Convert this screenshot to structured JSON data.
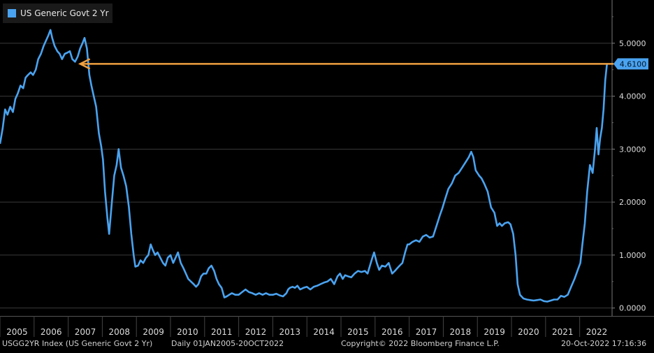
{
  "chart_data": {
    "type": "line",
    "title": "",
    "xlabel": "",
    "ylabel": "",
    "series": [
      {
        "name": "US Generic Govt 2 Yr",
        "color": "#4aa3f0",
        "points": [
          [
            2005.0,
            3.1
          ],
          [
            2005.08,
            3.4
          ],
          [
            2005.15,
            3.75
          ],
          [
            2005.22,
            3.65
          ],
          [
            2005.3,
            3.8
          ],
          [
            2005.38,
            3.7
          ],
          [
            2005.45,
            3.95
          ],
          [
            2005.52,
            4.05
          ],
          [
            2005.6,
            4.2
          ],
          [
            2005.68,
            4.15
          ],
          [
            2005.75,
            4.35
          ],
          [
            2005.82,
            4.4
          ],
          [
            2005.9,
            4.45
          ],
          [
            2005.97,
            4.4
          ],
          [
            2006.05,
            4.5
          ],
          [
            2006.12,
            4.7
          ],
          [
            2006.2,
            4.8
          ],
          [
            2006.28,
            4.95
          ],
          [
            2006.35,
            5.05
          ],
          [
            2006.42,
            5.15
          ],
          [
            2006.48,
            5.25
          ],
          [
            2006.53,
            5.1
          ],
          [
            2006.6,
            4.95
          ],
          [
            2006.68,
            4.85
          ],
          [
            2006.75,
            4.8
          ],
          [
            2006.82,
            4.7
          ],
          [
            2006.9,
            4.8
          ],
          [
            2006.97,
            4.82
          ],
          [
            2007.05,
            4.85
          ],
          [
            2007.12,
            4.7
          ],
          [
            2007.2,
            4.65
          ],
          [
            2007.28,
            4.75
          ],
          [
            2007.35,
            4.9
          ],
          [
            2007.42,
            5.0
          ],
          [
            2007.48,
            5.1
          ],
          [
            2007.55,
            4.9
          ],
          [
            2007.62,
            4.4
          ],
          [
            2007.68,
            4.2
          ],
          [
            2007.75,
            4.0
          ],
          [
            2007.82,
            3.8
          ],
          [
            2007.9,
            3.3
          ],
          [
            2007.97,
            3.05
          ],
          [
            2008.02,
            2.8
          ],
          [
            2008.08,
            2.2
          ],
          [
            2008.15,
            1.7
          ],
          [
            2008.2,
            1.4
          ],
          [
            2008.28,
            2.0
          ],
          [
            2008.35,
            2.5
          ],
          [
            2008.42,
            2.7
          ],
          [
            2008.48,
            3.0
          ],
          [
            2008.55,
            2.65
          ],
          [
            2008.62,
            2.5
          ],
          [
            2008.7,
            2.3
          ],
          [
            2008.78,
            1.9
          ],
          [
            2008.85,
            1.4
          ],
          [
            2008.92,
            1.0
          ],
          [
            2008.97,
            0.78
          ],
          [
            2009.05,
            0.8
          ],
          [
            2009.12,
            0.9
          ],
          [
            2009.2,
            0.85
          ],
          [
            2009.28,
            0.95
          ],
          [
            2009.35,
            1.0
          ],
          [
            2009.42,
            1.2
          ],
          [
            2009.48,
            1.1
          ],
          [
            2009.55,
            1.0
          ],
          [
            2009.62,
            1.05
          ],
          [
            2009.7,
            0.95
          ],
          [
            2009.78,
            0.85
          ],
          [
            2009.85,
            0.8
          ],
          [
            2009.92,
            0.95
          ],
          [
            2010.0,
            1.0
          ],
          [
            2010.08,
            0.85
          ],
          [
            2010.15,
            0.95
          ],
          [
            2010.22,
            1.05
          ],
          [
            2010.3,
            0.85
          ],
          [
            2010.38,
            0.75
          ],
          [
            2010.45,
            0.65
          ],
          [
            2010.52,
            0.55
          ],
          [
            2010.6,
            0.5
          ],
          [
            2010.68,
            0.45
          ],
          [
            2010.75,
            0.4
          ],
          [
            2010.82,
            0.45
          ],
          [
            2010.9,
            0.6
          ],
          [
            2010.97,
            0.65
          ],
          [
            2011.05,
            0.65
          ],
          [
            2011.12,
            0.75
          ],
          [
            2011.2,
            0.8
          ],
          [
            2011.28,
            0.7
          ],
          [
            2011.35,
            0.55
          ],
          [
            2011.42,
            0.45
          ],
          [
            2011.5,
            0.38
          ],
          [
            2011.58,
            0.2
          ],
          [
            2011.65,
            0.22
          ],
          [
            2011.72,
            0.25
          ],
          [
            2011.8,
            0.28
          ],
          [
            2011.9,
            0.25
          ],
          [
            2012.0,
            0.25
          ],
          [
            2012.1,
            0.3
          ],
          [
            2012.2,
            0.35
          ],
          [
            2012.3,
            0.3
          ],
          [
            2012.4,
            0.28
          ],
          [
            2012.5,
            0.25
          ],
          [
            2012.6,
            0.28
          ],
          [
            2012.7,
            0.25
          ],
          [
            2012.8,
            0.28
          ],
          [
            2012.9,
            0.25
          ],
          [
            2013.0,
            0.25
          ],
          [
            2013.1,
            0.27
          ],
          [
            2013.2,
            0.24
          ],
          [
            2013.3,
            0.22
          ],
          [
            2013.4,
            0.28
          ],
          [
            2013.45,
            0.35
          ],
          [
            2013.5,
            0.38
          ],
          [
            2013.58,
            0.4
          ],
          [
            2013.65,
            0.38
          ],
          [
            2013.72,
            0.42
          ],
          [
            2013.8,
            0.35
          ],
          [
            2013.9,
            0.38
          ],
          [
            2014.0,
            0.4
          ],
          [
            2014.1,
            0.35
          ],
          [
            2014.2,
            0.4
          ],
          [
            2014.3,
            0.42
          ],
          [
            2014.4,
            0.45
          ],
          [
            2014.5,
            0.48
          ],
          [
            2014.6,
            0.5
          ],
          [
            2014.7,
            0.55
          ],
          [
            2014.8,
            0.45
          ],
          [
            2014.9,
            0.6
          ],
          [
            2014.97,
            0.65
          ],
          [
            2015.05,
            0.55
          ],
          [
            2015.12,
            0.62
          ],
          [
            2015.2,
            0.6
          ],
          [
            2015.3,
            0.58
          ],
          [
            2015.4,
            0.65
          ],
          [
            2015.5,
            0.7
          ],
          [
            2015.6,
            0.68
          ],
          [
            2015.7,
            0.7
          ],
          [
            2015.78,
            0.65
          ],
          [
            2015.85,
            0.8
          ],
          [
            2015.92,
            0.95
          ],
          [
            2015.97,
            1.05
          ],
          [
            2016.05,
            0.85
          ],
          [
            2016.12,
            0.72
          ],
          [
            2016.2,
            0.8
          ],
          [
            2016.3,
            0.78
          ],
          [
            2016.4,
            0.85
          ],
          [
            2016.5,
            0.65
          ],
          [
            2016.58,
            0.7
          ],
          [
            2016.65,
            0.75
          ],
          [
            2016.72,
            0.8
          ],
          [
            2016.8,
            0.85
          ],
          [
            2016.88,
            1.05
          ],
          [
            2016.95,
            1.2
          ],
          [
            2017.0,
            1.2
          ],
          [
            2017.1,
            1.25
          ],
          [
            2017.2,
            1.28
          ],
          [
            2017.3,
            1.25
          ],
          [
            2017.4,
            1.35
          ],
          [
            2017.5,
            1.38
          ],
          [
            2017.6,
            1.33
          ],
          [
            2017.7,
            1.35
          ],
          [
            2017.8,
            1.55
          ],
          [
            2017.9,
            1.75
          ],
          [
            2017.97,
            1.88
          ],
          [
            2018.05,
            2.05
          ],
          [
            2018.15,
            2.25
          ],
          [
            2018.25,
            2.35
          ],
          [
            2018.35,
            2.5
          ],
          [
            2018.45,
            2.55
          ],
          [
            2018.55,
            2.65
          ],
          [
            2018.65,
            2.75
          ],
          [
            2018.75,
            2.85
          ],
          [
            2018.82,
            2.95
          ],
          [
            2018.88,
            2.85
          ],
          [
            2018.95,
            2.6
          ],
          [
            2019.05,
            2.5
          ],
          [
            2019.12,
            2.45
          ],
          [
            2019.2,
            2.35
          ],
          [
            2019.3,
            2.2
          ],
          [
            2019.4,
            1.9
          ],
          [
            2019.5,
            1.8
          ],
          [
            2019.58,
            1.55
          ],
          [
            2019.65,
            1.6
          ],
          [
            2019.72,
            1.55
          ],
          [
            2019.8,
            1.6
          ],
          [
            2019.9,
            1.62
          ],
          [
            2019.97,
            1.58
          ],
          [
            2020.05,
            1.4
          ],
          [
            2020.12,
            1.0
          ],
          [
            2020.18,
            0.45
          ],
          [
            2020.25,
            0.25
          ],
          [
            2020.35,
            0.18
          ],
          [
            2020.45,
            0.16
          ],
          [
            2020.55,
            0.15
          ],
          [
            2020.65,
            0.14
          ],
          [
            2020.75,
            0.15
          ],
          [
            2020.85,
            0.16
          ],
          [
            2020.95,
            0.13
          ],
          [
            2021.05,
            0.12
          ],
          [
            2021.15,
            0.14
          ],
          [
            2021.25,
            0.16
          ],
          [
            2021.35,
            0.16
          ],
          [
            2021.45,
            0.23
          ],
          [
            2021.55,
            0.21
          ],
          [
            2021.65,
            0.25
          ],
          [
            2021.75,
            0.4
          ],
          [
            2021.85,
            0.55
          ],
          [
            2021.95,
            0.73
          ],
          [
            2022.02,
            0.85
          ],
          [
            2022.08,
            1.2
          ],
          [
            2022.15,
            1.6
          ],
          [
            2022.22,
            2.2
          ],
          [
            2022.3,
            2.7
          ],
          [
            2022.38,
            2.55
          ],
          [
            2022.45,
            3.0
          ],
          [
            2022.5,
            3.4
          ],
          [
            2022.55,
            2.9
          ],
          [
            2022.6,
            3.2
          ],
          [
            2022.65,
            3.4
          ],
          [
            2022.7,
            3.75
          ],
          [
            2022.75,
            4.3
          ],
          [
            2022.8,
            4.61
          ]
        ]
      }
    ],
    "x_range": [
      2005.0,
      2022.95
    ],
    "ylim": [
      -0.15,
      5.75
    ],
    "x_ticks": [
      "2005",
      "2006",
      "2007",
      "2008",
      "2009",
      "2010",
      "2011",
      "2012",
      "2013",
      "2014",
      "2015",
      "2016",
      "2017",
      "2018",
      "2019",
      "2020",
      "2021",
      "2022"
    ],
    "y_ticks": [
      "0.0000",
      "1.0000",
      "2.0000",
      "3.0000",
      "4.0000",
      "5.0000"
    ],
    "y_tick_values": [
      0,
      1,
      2,
      3,
      4,
      5
    ],
    "grid": true,
    "last_value_label": "4.6100",
    "last_value": 4.61,
    "arrow": {
      "from_x": 2022.75,
      "to_x": 2007.35,
      "y": 4.61,
      "color": "#f0a040"
    },
    "legend": "top-left",
    "legend_label": "US Generic Govt 2 Yr"
  },
  "footer": {
    "index": "USGG2YR Index (US Generic Govt 2 Yr)",
    "range": "Daily 01JAN2005-20OCT2022",
    "copyright": "Copyright© 2022 Bloomberg Finance L.P.",
    "timestamp": "20-Oct-2022 17:16:36"
  },
  "colors": {
    "background": "#000000",
    "grid": "#3a3a3a",
    "axis_text": "#dddddd",
    "last_value_bg": "#4aa3f0"
  }
}
